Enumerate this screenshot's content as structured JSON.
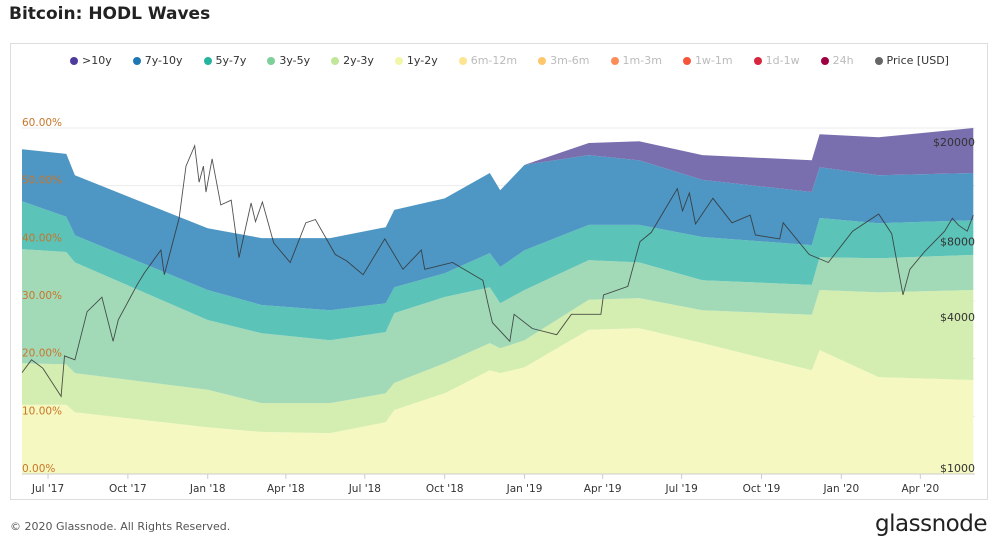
{
  "title": "Bitcoin: HODL Waves",
  "footer": "© 2020 Glassnode. All Rights Reserved.",
  "logo": "glassnode",
  "watermark": "glassnode",
  "chart_data": {
    "type": "area",
    "stacked": true,
    "title": "Bitcoin: HODL Waves",
    "legend_position": "top",
    "legend": [
      {
        "name": ">10y",
        "color": "#4e3c9c",
        "fill": "#7a6fae",
        "visible": true
      },
      {
        "name": "7y-10y",
        "color": "#1f78b4",
        "fill": "#4e96c3",
        "visible": true
      },
      {
        "name": "5y-7y",
        "color": "#26b3a0",
        "fill": "#5bc3b8",
        "visible": true
      },
      {
        "name": "3y-5y",
        "color": "#7ecf9a",
        "fill": "#a2dab8",
        "visible": true
      },
      {
        "name": "2y-3y",
        "color": "#c2e699",
        "fill": "#d4edb0",
        "visible": true
      },
      {
        "name": "1y-2y",
        "color": "#f2f7a8",
        "fill": "#f5f8c0",
        "visible": true
      },
      {
        "name": "6m-12m",
        "color": "#fee391",
        "visible": false
      },
      {
        "name": "3m-6m",
        "color": "#fec76b",
        "visible": false
      },
      {
        "name": "1m-3m",
        "color": "#fc8d59",
        "visible": false
      },
      {
        "name": "1w-1m",
        "color": "#f5563b",
        "visible": false
      },
      {
        "name": "1d-1w",
        "color": "#d7263d",
        "visible": false
      },
      {
        "name": "24h",
        "color": "#9e0142",
        "visible": false
      },
      {
        "name": "Price [USD]",
        "color": "#666666",
        "visible": true
      }
    ],
    "x": [
      "2017-06-01",
      "2017-07-22",
      "2017-08-01",
      "2018-01-01",
      "2018-03-04",
      "2018-05-22",
      "2018-07-25",
      "2018-08-04",
      "2018-10-01",
      "2018-11-22",
      "2018-12-04",
      "2019-01-01",
      "2019-03-16",
      "2019-05-13",
      "2019-07-25",
      "2019-11-28",
      "2019-12-07",
      "2020-02-13",
      "2020-06-01"
    ],
    "series": [
      {
        "name": "1y-2y",
        "values": [
          12,
          12,
          10.7,
          8.1,
          7.3,
          7.1,
          9.0,
          11.1,
          14.0,
          18.0,
          17.5,
          18.5,
          25.0,
          25.3,
          22.7,
          18.0,
          21.5,
          16.8,
          16.3
        ]
      },
      {
        "name": "2y-3y",
        "values": [
          7.2,
          7.0,
          6.8,
          6.5,
          5.0,
          5.2,
          5.0,
          4.7,
          5.2,
          4.7,
          4.3,
          4.7,
          5.2,
          5.2,
          5.7,
          9.6,
          10.4,
          14.7,
          15.6
        ]
      },
      {
        "name": "3y-5y",
        "values": [
          19.8,
          19.5,
          19.2,
          12.1,
          12.1,
          10.9,
          10.6,
          12.1,
          11.5,
          9.7,
          7.8,
          8.7,
          6.9,
          6.2,
          5.2,
          5.2,
          5.7,
          5.9,
          6.1
        ]
      },
      {
        "name": "5y-7y",
        "values": [
          8.3,
          6.1,
          4.7,
          5.2,
          4.9,
          5.2,
          5.0,
          4.5,
          4.1,
          5.9,
          6.3,
          6.9,
          6.1,
          6.5,
          7.5,
          6.9,
          6.8,
          6.1,
          6.0
        ]
      },
      {
        "name": "7y-10y",
        "values": [
          9.0,
          10.9,
          10.4,
          10.7,
          11.6,
          12.5,
          13.2,
          13.4,
          13.0,
          13.9,
          13.3,
          14.8,
          12.1,
          11.2,
          9.9,
          9.2,
          8.8,
          8.3,
          8.2
        ]
      },
      {
        "name": ">10y",
        "values": [
          0,
          0,
          0,
          0,
          0,
          0,
          0,
          0,
          0,
          0,
          0,
          0,
          2.1,
          3.3,
          4.3,
          5.5,
          5.7,
          6.6,
          7.8
        ]
      }
    ],
    "price": {
      "name": "Price [USD]",
      "x": [
        "2017-06-01",
        "2017-06-12",
        "2017-06-25",
        "2017-07-16",
        "2017-07-20",
        "2017-08-01",
        "2017-08-15",
        "2017-09-01",
        "2017-09-14",
        "2017-09-20",
        "2017-10-12",
        "2017-10-20",
        "2017-11-08",
        "2017-11-12",
        "2017-11-29",
        "2017-12-07",
        "2017-12-17",
        "2017-12-22",
        "2017-12-27",
        "2017-12-30",
        "2018-01-06",
        "2018-01-16",
        "2018-01-28",
        "2018-02-06",
        "2018-02-20",
        "2018-02-25",
        "2018-03-05",
        "2018-03-18",
        "2018-04-06",
        "2018-04-24",
        "2018-05-05",
        "2018-05-28",
        "2018-06-10",
        "2018-06-29",
        "2018-07-24",
        "2018-08-14",
        "2018-09-04",
        "2018-09-08",
        "2018-10-10",
        "2018-11-14",
        "2018-11-20",
        "2018-11-25",
        "2018-12-15",
        "2018-12-20",
        "2019-01-10",
        "2019-02-07",
        "2019-02-24",
        "2019-03-30",
        "2019-04-02",
        "2019-04-30",
        "2019-05-14",
        "2019-05-27",
        "2019-06-26",
        "2019-07-02",
        "2019-07-10",
        "2019-07-17",
        "2019-08-06",
        "2019-08-28",
        "2019-09-18",
        "2019-09-24",
        "2019-10-22",
        "2019-10-26",
        "2019-11-25",
        "2019-12-17",
        "2020-01-14",
        "2020-02-13",
        "2020-02-28",
        "2020-03-12",
        "2020-03-20",
        "2020-04-06",
        "2020-04-29",
        "2020-05-08",
        "2020-05-15",
        "2020-05-25",
        "2020-06-01"
      ],
      "values": [
        2400,
        2700,
        2500,
        1930,
        2800,
        2700,
        4200,
        4800,
        3200,
        3900,
        5400,
        6000,
        7400,
        5900,
        9900,
        16000,
        19300,
        13800,
        16000,
        12600,
        17100,
        11200,
        11700,
        6900,
        11400,
        9600,
        11500,
        7900,
        6600,
        9500,
        9800,
        7100,
        6700,
        5900,
        8200,
        6200,
        7400,
        6200,
        6600,
        5600,
        4500,
        3800,
        3200,
        4100,
        3600,
        3400,
        4100,
        4100,
        4900,
        5300,
        8000,
        8700,
        13000,
        10600,
        12500,
        9400,
        11900,
        9500,
        10200,
        8500,
        8200,
        9500,
        7100,
        6600,
        8800,
        10300,
        8600,
        4900,
        6200,
        7300,
        8800,
        9900,
        9300,
        8800,
        10200
      ]
    },
    "x_range": [
      "2017-06-01",
      "2020-06-03"
    ],
    "x_ticks": [
      {
        "date": "2017-07-01",
        "label": "Jul '17"
      },
      {
        "date": "2017-10-01",
        "label": "Oct '17"
      },
      {
        "date": "2018-01-01",
        "label": "Jan '18"
      },
      {
        "date": "2018-04-01",
        "label": "Apr '18"
      },
      {
        "date": "2018-07-01",
        "label": "Jul '18"
      },
      {
        "date": "2018-10-01",
        "label": "Oct '18"
      },
      {
        "date": "2019-01-01",
        "label": "Jan '19"
      },
      {
        "date": "2019-04-01",
        "label": "Apr '19"
      },
      {
        "date": "2019-07-01",
        "label": "Jul '19"
      },
      {
        "date": "2019-10-01",
        "label": "Oct '19"
      },
      {
        "date": "2020-01-01",
        "label": "Jan '20"
      },
      {
        "date": "2020-04-01",
        "label": "Apr '20"
      }
    ],
    "ylim": [
      0,
      60
    ],
    "y_ticks": [
      {
        "v": 0,
        "label": "0.00%"
      },
      {
        "v": 10,
        "label": "10.00%"
      },
      {
        "v": 20,
        "label": "20.00%"
      },
      {
        "v": 30,
        "label": "30.00%"
      },
      {
        "v": 40,
        "label": "40.00%"
      },
      {
        "v": 50,
        "label": "50.00%"
      },
      {
        "v": 60,
        "label": "60.00%"
      }
    ],
    "y2_scale": "log",
    "y2lim": [
      946,
      22700
    ],
    "y2_ticks": [
      {
        "v": 1000,
        "label": "$1000"
      },
      {
        "v": 4000,
        "label": "$4000"
      },
      {
        "v": 8000,
        "label": "$8000"
      },
      {
        "v": 20000,
        "label": "$20000"
      }
    ],
    "grid": true
  }
}
